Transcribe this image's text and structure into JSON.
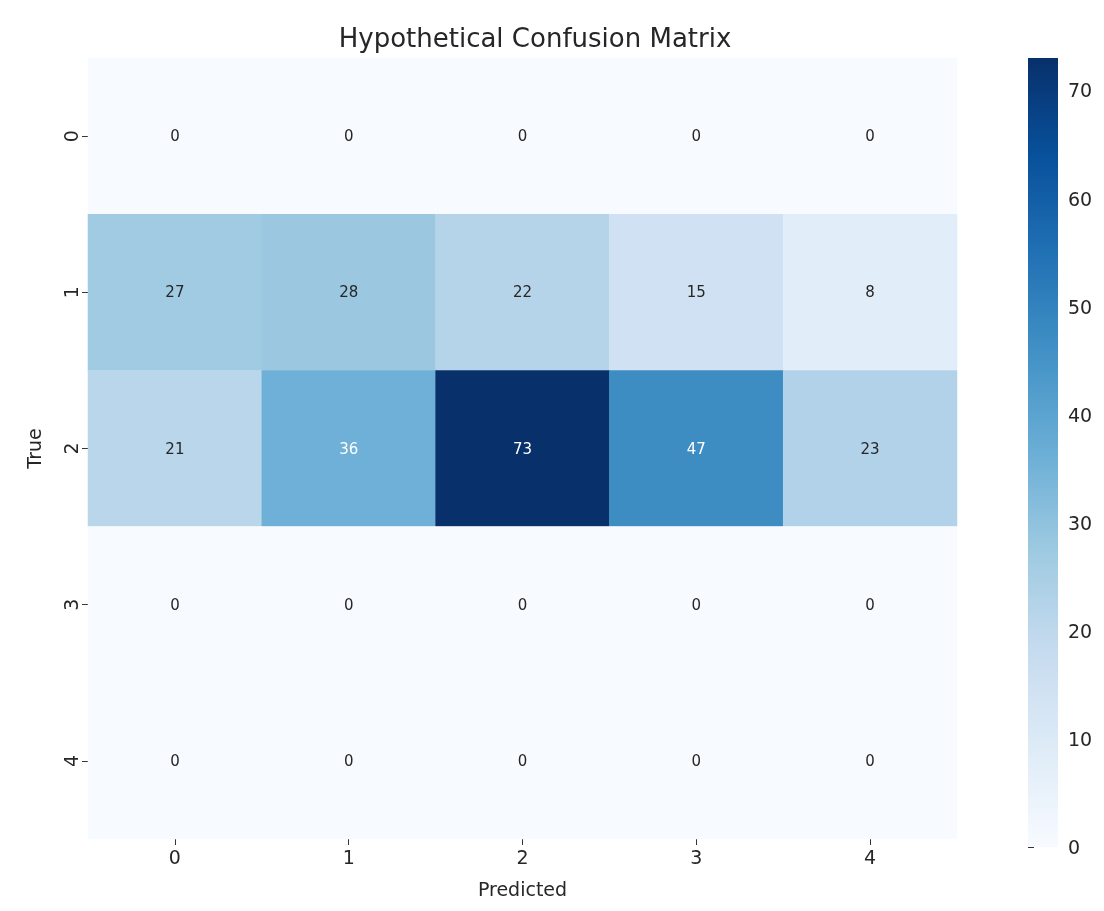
{
  "chart_data": {
    "type": "heatmap",
    "title": "Hypothetical Confusion Matrix",
    "xlabel": "Predicted",
    "ylabel": "True",
    "categories": [
      "0",
      "1",
      "2",
      "3",
      "4"
    ],
    "y_categories": [
      "0",
      "1",
      "2",
      "3",
      "4"
    ],
    "cells": [
      [
        0,
        0,
        0,
        0,
        0
      ],
      [
        27,
        28,
        22,
        15,
        8
      ],
      [
        21,
        36,
        73,
        47,
        23
      ],
      [
        0,
        0,
        0,
        0,
        0
      ],
      [
        0,
        0,
        0,
        0,
        0
      ]
    ],
    "data_labels": true,
    "clim": [
      0,
      73
    ],
    "cticks": [
      0,
      10,
      20,
      30,
      40,
      50,
      60,
      70
    ]
  }
}
